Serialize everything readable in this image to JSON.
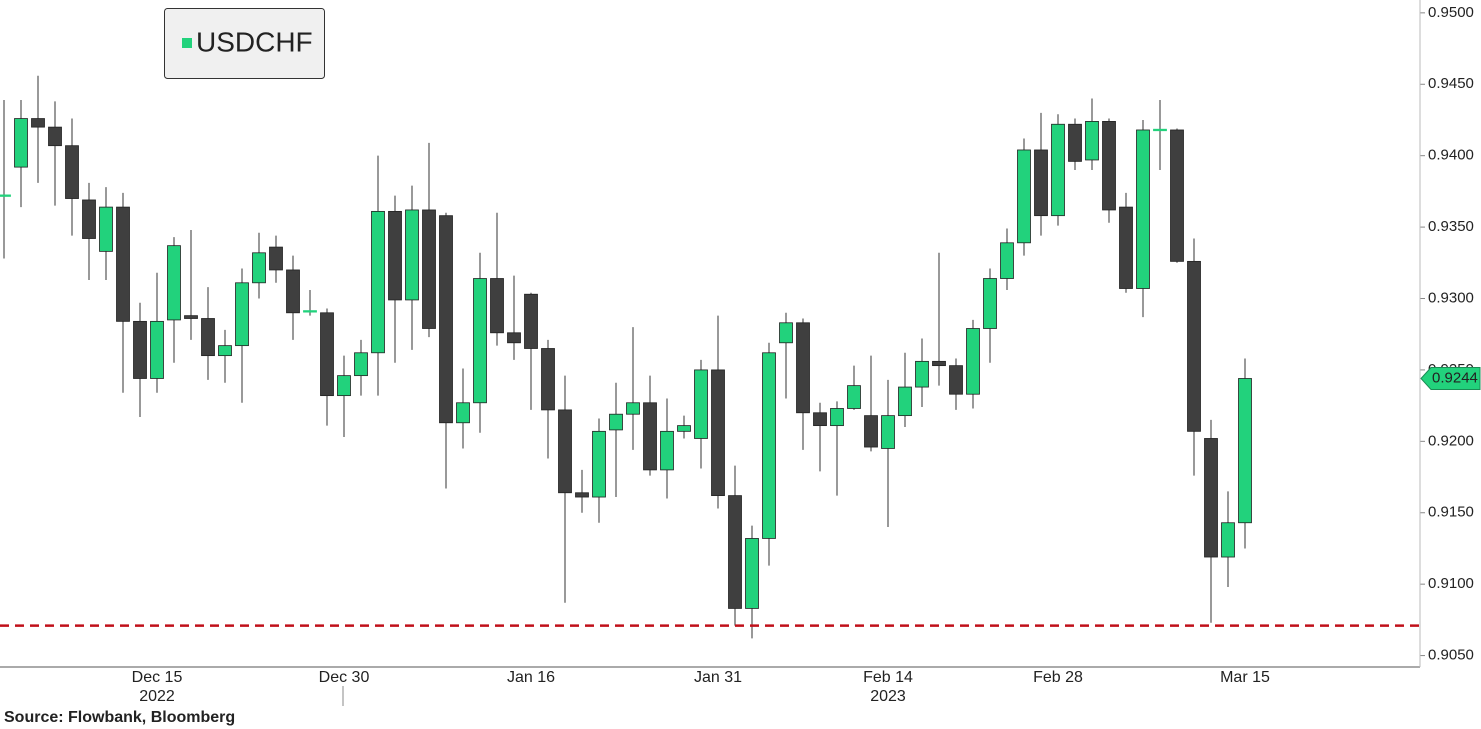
{
  "chart_data": {
    "type": "candlestick",
    "source": "Source: Flowbank, Bloomberg",
    "categories": [
      null,
      null,
      null,
      null,
      null,
      null,
      null,
      null,
      null,
      "Dec 15",
      null,
      null,
      null,
      null,
      null,
      null,
      null,
      null,
      null,
      null,
      "Dec 30",
      null,
      null,
      null,
      null,
      null,
      null,
      null,
      null,
      null,
      null,
      "Jan 16",
      null,
      null,
      null,
      null,
      null,
      null,
      null,
      null,
      null,
      null,
      "Jan 31",
      null,
      null,
      null,
      null,
      null,
      null,
      null,
      null,
      null,
      "Feb 14",
      null,
      null,
      null,
      null,
      null,
      null,
      null,
      null,
      null,
      "Feb 28",
      null,
      null,
      null,
      null,
      null,
      null,
      null,
      null,
      null,
      null,
      "Mar 15"
    ],
    "category_years": [
      null,
      null,
      null,
      null,
      null,
      null,
      null,
      null,
      null,
      "2022",
      null,
      null,
      null,
      null,
      null,
      null,
      null,
      null,
      null,
      null,
      null,
      null,
      null,
      null,
      null,
      null,
      null,
      null,
      null,
      null,
      null,
      null,
      null,
      null,
      null,
      null,
      null,
      null,
      null,
      null,
      null,
      null,
      null,
      null,
      null,
      null,
      null,
      null,
      null,
      null,
      null,
      null,
      "2023",
      null,
      null,
      null,
      null,
      null,
      null,
      null,
      null,
      null,
      null,
      null,
      null,
      null,
      null,
      null,
      null,
      null,
      null,
      null,
      null,
      null
    ],
    "series": [
      {
        "name": "USDCHF",
        "up_color": "#22d27c",
        "down_color": "#3f3f3f",
        "open": [
          0.9372,
          0.9392,
          0.9426,
          0.942,
          0.9407,
          0.9369,
          0.9333,
          0.9364,
          0.9284,
          0.9244,
          0.9285,
          0.9288,
          0.9286,
          0.926,
          0.9267,
          0.9311,
          0.9336,
          0.932,
          0.929,
          0.929,
          0.9232,
          0.9246,
          0.9262,
          0.9361,
          0.9299,
          0.9362,
          0.9358,
          0.9213,
          0.9227,
          0.9314,
          0.9276,
          0.9303,
          0.9265,
          0.9222,
          0.9164,
          0.9161,
          0.9208,
          0.9219,
          0.9227,
          0.918,
          0.9207,
          0.9202,
          0.925,
          0.9162,
          0.9083,
          0.9132,
          0.9269,
          0.9283,
          0.922,
          0.9211,
          0.9223,
          0.9218,
          0.9195,
          0.9218,
          0.9238,
          0.9256,
          0.9253,
          0.9233,
          0.9279,
          0.9314,
          0.9339,
          0.9404,
          0.9358,
          0.9422,
          0.9397,
          0.9424,
          0.9364,
          0.9307,
          0.9418,
          0.9418,
          0.9326,
          0.9202,
          0.9119,
          0.9143
        ],
        "high": [
          0.9439,
          0.9439,
          0.9456,
          0.9438,
          0.9426,
          0.9381,
          0.9378,
          0.9374,
          0.9297,
          0.9318,
          0.9343,
          0.9348,
          0.9308,
          0.9278,
          0.9321,
          0.9346,
          0.9344,
          0.933,
          0.9306,
          0.9293,
          0.926,
          0.9271,
          0.94,
          0.9372,
          0.9379,
          0.9409,
          0.936,
          0.9251,
          0.9332,
          0.936,
          0.9316,
          0.9304,
          0.9271,
          0.9246,
          0.918,
          0.9216,
          0.9241,
          0.928,
          0.9246,
          0.923,
          0.9218,
          0.9257,
          0.9288,
          0.9183,
          0.9141,
          0.9269,
          0.929,
          0.9286,
          0.9227,
          0.9228,
          0.9253,
          0.926,
          0.9243,
          0.9262,
          0.9272,
          0.9332,
          0.9258,
          0.9285,
          0.9321,
          0.9349,
          0.9412,
          0.943,
          0.9429,
          0.9426,
          0.944,
          0.9426,
          0.9374,
          0.9425,
          0.9439,
          0.9419,
          0.9342,
          0.9215,
          0.9165,
          0.9258
        ],
        "low": [
          0.9328,
          0.9364,
          0.9381,
          0.9365,
          0.9344,
          0.9313,
          0.9313,
          0.9234,
          0.9217,
          0.9234,
          0.9255,
          0.9271,
          0.9243,
          0.9241,
          0.9227,
          0.93,
          0.9311,
          0.9271,
          0.9288,
          0.9211,
          0.9203,
          0.9232,
          0.9232,
          0.9255,
          0.9264,
          0.9273,
          0.9167,
          0.9195,
          0.9206,
          0.9267,
          0.9257,
          0.9222,
          0.9188,
          0.9087,
          0.915,
          0.9143,
          0.9161,
          0.9194,
          0.9176,
          0.916,
          0.9202,
          0.9181,
          0.9153,
          0.9071,
          0.9062,
          0.9113,
          0.923,
          0.9194,
          0.9179,
          0.9162,
          0.9222,
          0.9193,
          0.914,
          0.921,
          0.9224,
          0.9239,
          0.9222,
          0.9223,
          0.9255,
          0.9306,
          0.933,
          0.9344,
          0.9351,
          0.939,
          0.939,
          0.9353,
          0.9304,
          0.9287,
          0.939,
          0.9325,
          0.9176,
          0.9073,
          0.9098,
          0.9125
        ],
        "close": [
          0.9372,
          0.9426,
          0.942,
          0.9407,
          0.937,
          0.9342,
          0.9364,
          0.9284,
          0.9244,
          0.9284,
          0.9337,
          0.9286,
          0.926,
          0.9267,
          0.9311,
          0.9332,
          0.932,
          0.929,
          0.9291,
          0.9232,
          0.9246,
          0.9262,
          0.9361,
          0.9299,
          0.9362,
          0.9279,
          0.9213,
          0.9227,
          0.9314,
          0.9276,
          0.9269,
          0.9265,
          0.9222,
          0.9164,
          0.9161,
          0.9207,
          0.9219,
          0.9227,
          0.918,
          0.9207,
          0.9211,
          0.925,
          0.9162,
          0.9083,
          0.9132,
          0.9262,
          0.9283,
          0.922,
          0.9211,
          0.9223,
          0.9239,
          0.9196,
          0.9218,
          0.9238,
          0.9256,
          0.9253,
          0.9233,
          0.9279,
          0.9314,
          0.9339,
          0.9404,
          0.9358,
          0.9422,
          0.9396,
          0.9424,
          0.9362,
          0.9307,
          0.9418,
          0.9418,
          0.9326,
          0.9207,
          0.9119,
          0.9143,
          0.9244
        ]
      }
    ],
    "reference_line": {
      "value": 0.9071,
      "color": "#c0101a"
    },
    "ylim": [
      0.9042,
      0.9509
    ],
    "yticks": [
      {
        "value": 0.905,
        "label": "0.9050"
      },
      {
        "value": 0.91,
        "label": "0.9100"
      },
      {
        "value": 0.915,
        "label": "0.9150"
      },
      {
        "value": 0.92,
        "label": "0.9200"
      },
      {
        "value": 0.925,
        "label": "0.9250"
      },
      {
        "value": 0.93,
        "label": "0.9300"
      },
      {
        "value": 0.935,
        "label": "0.9350"
      },
      {
        "value": 0.94,
        "label": "0.9400"
      },
      {
        "value": 0.945,
        "label": "0.9450"
      },
      {
        "value": 0.95,
        "label": "0.9500"
      }
    ],
    "y_axis_side": "right",
    "legend": "upper-left"
  }
}
